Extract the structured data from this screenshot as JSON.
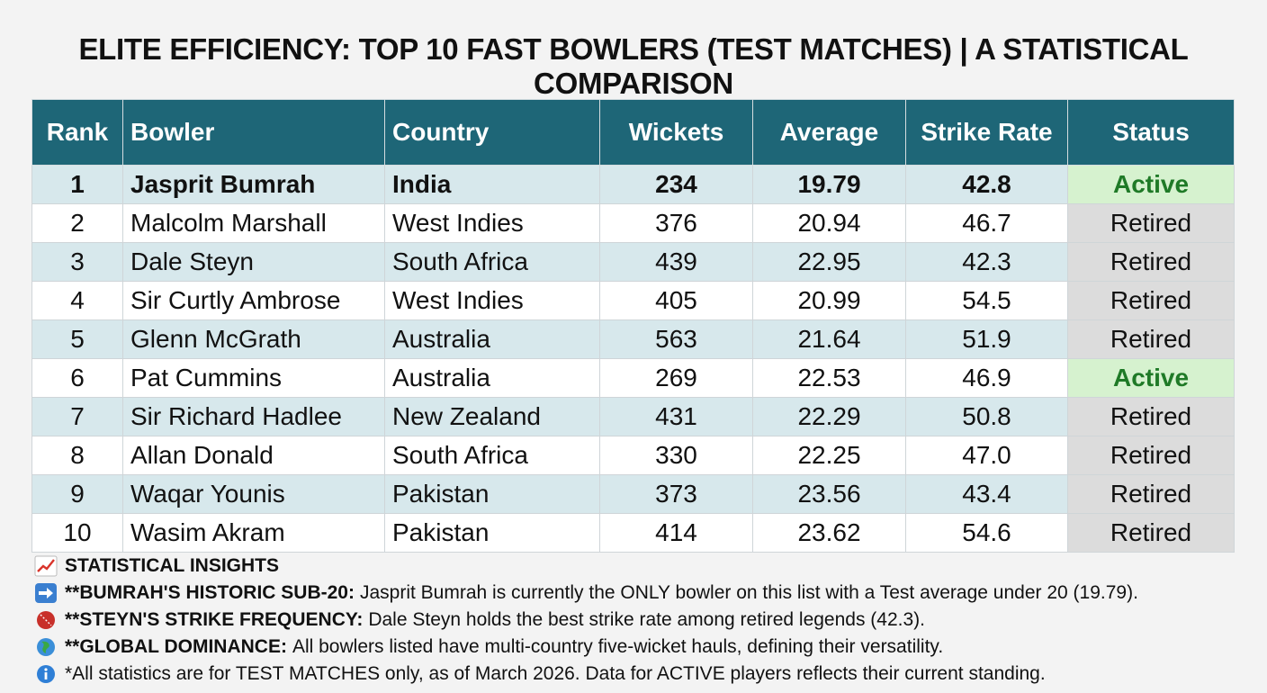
{
  "title": "ELITE EFFICIENCY: TOP 10 FAST BOWLERS (TEST MATCHES) | A STATISTICAL COMPARISON",
  "table": {
    "headers": {
      "rank": "Rank",
      "bowler": "Bowler",
      "country": "Country",
      "wickets": "Wickets",
      "average": "Average",
      "strike_rate": "Strike Rate",
      "status": "Status"
    },
    "rows": [
      {
        "rank": "1",
        "bowler": "Jasprit Bumrah",
        "country": "India",
        "wickets": "234",
        "average": "19.79",
        "strike_rate": "42.8",
        "status": "Active"
      },
      {
        "rank": "2",
        "bowler": "Malcolm Marshall",
        "country": "West Indies",
        "wickets": "376",
        "average": "20.94",
        "strike_rate": "46.7",
        "status": "Retired"
      },
      {
        "rank": "3",
        "bowler": "Dale Steyn",
        "country": "South Africa",
        "wickets": "439",
        "average": "22.95",
        "strike_rate": "42.3",
        "status": "Retired"
      },
      {
        "rank": "4",
        "bowler": "Sir Curtly Ambrose",
        "country": "West Indies",
        "wickets": "405",
        "average": "20.99",
        "strike_rate": "54.5",
        "status": "Retired"
      },
      {
        "rank": "5",
        "bowler": "Glenn McGrath",
        "country": "Australia",
        "wickets": "563",
        "average": "21.64",
        "strike_rate": "51.9",
        "status": "Retired"
      },
      {
        "rank": "6",
        "bowler": "Pat Cummins",
        "country": "Australia",
        "wickets": "269",
        "average": "22.53",
        "strike_rate": "46.9",
        "status": "Active"
      },
      {
        "rank": "7",
        "bowler": "Sir Richard Hadlee",
        "country": "New Zealand",
        "wickets": "431",
        "average": "22.29",
        "strike_rate": "50.8",
        "status": "Retired"
      },
      {
        "rank": "8",
        "bowler": "Allan Donald",
        "country": "South Africa",
        "wickets": "330",
        "average": "22.25",
        "strike_rate": "47.0",
        "status": "Retired"
      },
      {
        "rank": "9",
        "bowler": "Waqar Younis",
        "country": "Pakistan",
        "wickets": "373",
        "average": "23.56",
        "strike_rate": "43.4",
        "status": "Retired"
      },
      {
        "rank": "10",
        "bowler": "Wasim Akram",
        "country": "Pakistan",
        "wickets": "414",
        "average": "23.62",
        "strike_rate": "54.6",
        "status": "Retired"
      }
    ]
  },
  "insights": {
    "heading": "STATISTICAL INSIGHTS",
    "items": [
      {
        "icon": "arrow-right-icon",
        "lead": "**BUMRAH'S HISTORIC SUB-20:",
        "text": "Jasprit Bumrah is currently the ONLY bowler on this list with a Test average under 20 (19.79)."
      },
      {
        "icon": "cricket-ball-icon",
        "lead": "**STEYN'S STRIKE FREQUENCY:",
        "text": "Dale Steyn holds the best strike rate among retired legends (42.3)."
      },
      {
        "icon": "globe-icon",
        "lead": "**GLOBAL DOMINANCE:",
        "text": "All bowlers listed have multi-country five-wicket hauls, defining their versatility."
      },
      {
        "icon": "info-icon",
        "lead": "",
        "text": "*All statistics are for TEST MATCHES only, as of March 2026. Data for ACTIVE players reflects their current standing."
      }
    ]
  },
  "colors": {
    "header_bg": "#1e6677",
    "row_alt": "#d7e8ec",
    "active_bg": "#d6f2cf",
    "active_text": "#1f7a27",
    "retired_bg": "#dcdcdc"
  }
}
